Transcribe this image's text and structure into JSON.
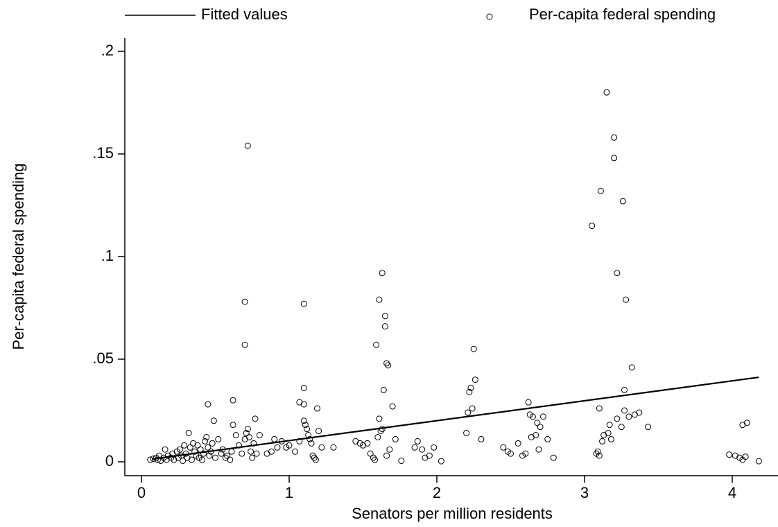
{
  "chart_data": {
    "type": "scatter",
    "xlabel": "Senators per million residents",
    "ylabel": "Per-capita federal spending",
    "xlim": [
      -0.1127,
      4.3099
    ],
    "ylim": [
      -0.00676,
      0.20642
    ],
    "xticks": [
      0,
      1,
      2,
      3,
      4
    ],
    "yticks": [
      0,
      {
        "value": 0.05,
        "label": ".05"
      },
      {
        "value": 0.1,
        "label": ".1"
      },
      {
        "value": 0.15,
        "label": ".15"
      },
      {
        "value": 0.2,
        "label": ".2"
      }
    ],
    "legend": "top",
    "series": [
      {
        "name": "Fitted values",
        "style": "line",
        "color": "#000000",
        "x": [
          0.07,
          4.18
        ],
        "values": [
          0.0013,
          0.0412
        ]
      },
      {
        "name": "Per-capita federal spending",
        "style": "marker",
        "color": "#000000",
        "x": [
          0.72,
          0.7,
          0.7,
          1.1,
          1.63,
          1.61,
          1.65,
          1.65,
          1.59,
          1.66,
          1.67,
          1.64,
          1.7,
          1.61,
          2.25,
          2.26,
          2.23,
          2.22,
          2.24,
          2.21,
          3.15,
          3.2,
          3.2,
          3.11,
          3.26,
          3.05,
          3.22,
          3.28,
          3.32,
          3.27,
          3.1,
          1.1,
          1.1,
          0.62,
          0.45,
          1.07,
          0.49,
          0.77,
          1.19,
          2.62,
          2.65,
          2.68,
          2.7,
          2.63,
          2.72,
          4.07,
          4.1,
          3.17,
          3.25,
          3.22,
          3.34,
          3.37,
          3.3,
          3.43,
          3.27,
          3.13,
          3.16,
          3.12,
          3.18,
          3.09,
          3.1,
          3.08,
          0.06,
          0.08,
          0.1,
          0.11,
          0.12,
          0.13,
          0.15,
          0.16,
          0.17,
          0.18,
          0.2,
          0.21,
          0.22,
          0.24,
          0.25,
          0.26,
          0.27,
          0.28,
          0.29,
          0.3,
          0.31,
          0.32,
          0.33,
          0.34,
          0.35,
          0.36,
          0.37,
          0.38,
          0.39,
          0.4,
          0.41,
          0.42,
          0.43,
          0.44,
          0.45,
          0.46,
          0.47,
          0.48,
          0.5,
          0.52,
          0.54,
          0.55,
          0.57,
          0.58,
          0.6,
          0.61,
          0.62,
          0.64,
          0.66,
          0.68,
          0.7,
          0.71,
          0.72,
          0.73,
          0.74,
          0.75,
          0.76,
          0.78,
          0.8,
          0.85,
          0.88,
          0.9,
          0.92,
          0.95,
          0.98,
          1.0,
          1.04,
          1.07,
          1.1,
          1.11,
          1.12,
          1.13,
          1.14,
          1.15,
          1.16,
          1.17,
          1.18,
          1.2,
          1.22,
          1.3,
          1.45,
          1.48,
          1.5,
          1.53,
          1.55,
          1.57,
          1.58,
          1.6,
          1.62,
          1.63,
          1.66,
          1.68,
          1.72,
          1.76,
          1.85,
          1.87,
          1.9,
          1.92,
          1.95,
          1.98,
          2.03,
          2.2,
          2.3,
          2.45,
          2.48,
          2.5,
          2.55,
          2.58,
          2.6,
          2.64,
          2.67,
          2.69,
          2.75,
          2.79,
          3.98,
          4.02,
          4.05,
          4.07,
          4.09,
          4.18
        ],
        "values": [
          0.154,
          0.078,
          0.057,
          0.077,
          0.092,
          0.079,
          0.071,
          0.066,
          0.057,
          0.048,
          0.047,
          0.035,
          0.027,
          0.021,
          0.055,
          0.04,
          0.036,
          0.034,
          0.026,
          0.024,
          0.18,
          0.158,
          0.148,
          0.132,
          0.127,
          0.115,
          0.092,
          0.079,
          0.046,
          0.035,
          0.026,
          0.036,
          0.028,
          0.03,
          0.028,
          0.029,
          0.02,
          0.021,
          0.026,
          0.029,
          0.022,
          0.019,
          0.017,
          0.023,
          0.022,
          0.018,
          0.019,
          0.018,
          0.017,
          0.021,
          0.023,
          0.024,
          0.022,
          0.017,
          0.025,
          0.013,
          0.014,
          0.01,
          0.011,
          0.005,
          0.003,
          0.004,
          0.001,
          0.0015,
          0.002,
          0.001,
          0.003,
          0.0005,
          0.002,
          0.006,
          0.001,
          0.003,
          0.002,
          0.004,
          0.001,
          0.005,
          0.002,
          0.006,
          0.003,
          0.0005,
          0.008,
          0.004,
          0.002,
          0.014,
          0.007,
          0.001,
          0.009,
          0.005,
          0.003,
          0.008,
          0.002,
          0.006,
          0.001,
          0.004,
          0.01,
          0.012,
          0.007,
          0.003,
          0.005,
          0.009,
          0.002,
          0.011,
          0.004,
          0.006,
          0.002,
          0.003,
          0.001,
          0.005,
          0.018,
          0.013,
          0.008,
          0.004,
          0.011,
          0.014,
          0.016,
          0.012,
          0.005,
          0.002,
          0.009,
          0.004,
          0.013,
          0.004,
          0.005,
          0.011,
          0.007,
          0.01,
          0.007,
          0.008,
          0.005,
          0.01,
          0.02,
          0.018,
          0.016,
          0.013,
          0.011,
          0.009,
          0.003,
          0.002,
          0.001,
          0.015,
          0.007,
          0.007,
          0.01,
          0.009,
          0.008,
          0.009,
          0.004,
          0.002,
          0.001,
          0.012,
          0.015,
          0.016,
          0.003,
          0.006,
          0.011,
          0.0005,
          0.007,
          0.01,
          0.006,
          0.002,
          0.003,
          0.007,
          0.0003,
          0.014,
          0.011,
          0.007,
          0.005,
          0.004,
          0.009,
          0.003,
          0.004,
          0.012,
          0.013,
          0.006,
          0.011,
          0.002,
          0.0035,
          0.003,
          0.002,
          0.001,
          0.0025,
          0.0003
        ]
      }
    ]
  }
}
